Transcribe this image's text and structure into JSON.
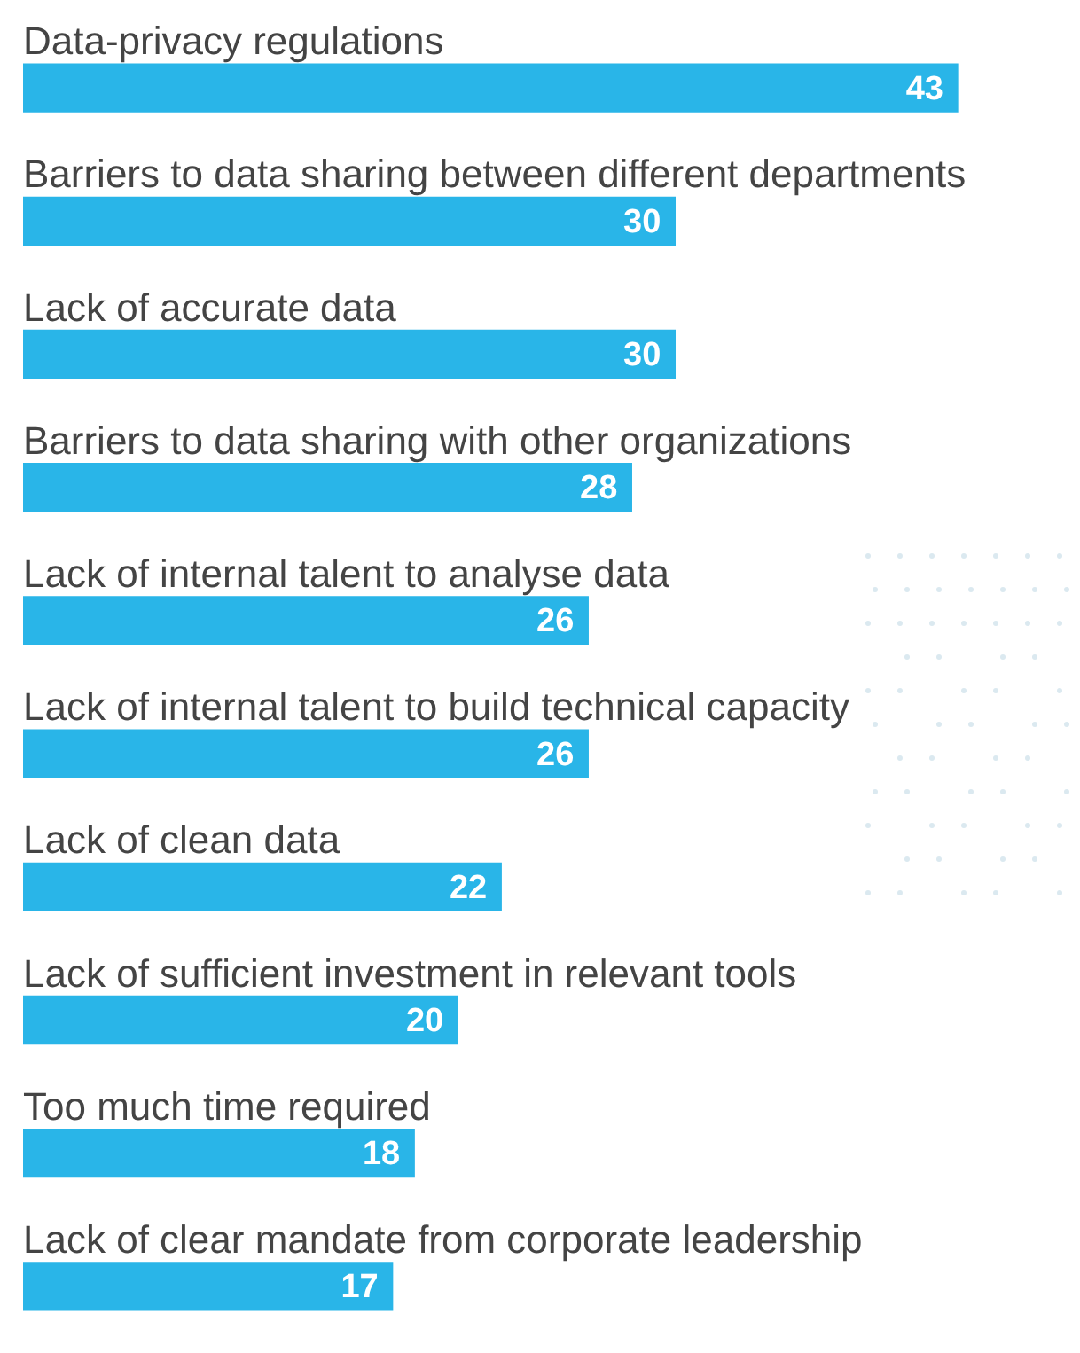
{
  "chart_data": {
    "type": "bar",
    "orientation": "horizontal",
    "categories": [
      "Data-privacy regulations",
      "Barriers to data sharing between different departments",
      "Lack of accurate data",
      "Barriers to data sharing with other organizations",
      "Lack of internal talent to analyse data",
      "Lack of internal talent to build technical capacity",
      "Lack of clean data",
      "Lack of sufficient investment in relevant tools",
      "Too much time required",
      "Lack of clear mandate from corporate leadership"
    ],
    "values": [
      43,
      30,
      30,
      28,
      26,
      26,
      22,
      20,
      18,
      17
    ],
    "color": "#29b5e8",
    "data_labels": true,
    "legend": false
  }
}
